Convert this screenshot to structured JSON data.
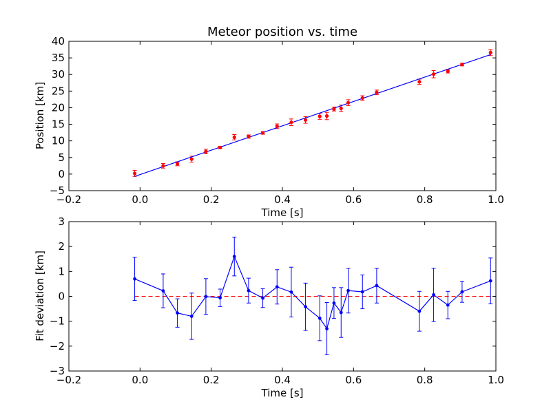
{
  "chart_data": [
    {
      "type": "scatter",
      "title": "Meteor position vs. time",
      "xlabel": "Time [s]",
      "ylabel": "Position [km]",
      "xlim": [
        -0.2,
        1.0
      ],
      "ylim": [
        -5,
        40
      ],
      "xticks": [
        -0.2,
        0.0,
        0.2,
        0.4,
        0.6,
        0.8,
        1.0
      ],
      "xtick_labels": [
        "−0.2",
        "0.0",
        "0.2",
        "0.4",
        "0.6",
        "0.8",
        "1.0"
      ],
      "yticks": [
        -5,
        0,
        5,
        10,
        15,
        20,
        25,
        30,
        35,
        40
      ],
      "ytick_labels": [
        "−5",
        "0",
        "5",
        "10",
        "15",
        "20",
        "25",
        "30",
        "35",
        "40"
      ],
      "grid": false,
      "colors": {
        "points": "#ff0000",
        "fit": "#0000ff",
        "axes": "#000000"
      },
      "series": [
        {
          "kind": "errorbar",
          "x": [
            -0.015,
            0.065,
            0.105,
            0.145,
            0.185,
            0.225,
            0.265,
            0.305,
            0.345,
            0.385,
            0.425,
            0.465,
            0.505,
            0.525,
            0.545,
            0.565,
            0.585,
            0.625,
            0.665,
            0.785,
            0.825,
            0.865,
            0.905,
            0.985
          ],
          "y": [
            0.2,
            2.5,
            3.1,
            4.5,
            6.8,
            8.0,
            11.1,
            11.3,
            12.4,
            14.4,
            15.6,
            16.3,
            17.4,
            17.5,
            19.6,
            19.8,
            21.5,
            22.9,
            24.6,
            27.8,
            30.1,
            31.0,
            33.0,
            36.6
          ],
          "yerr": [
            0.9,
            0.7,
            0.6,
            0.9,
            0.7,
            0.35,
            0.8,
            0.5,
            0.4,
            0.7,
            1.0,
            1.0,
            0.9,
            1.1,
            0.6,
            1.0,
            0.9,
            0.7,
            0.7,
            0.8,
            1.1,
            0.55,
            0.4,
            0.9
          ]
        },
        {
          "kind": "line",
          "x": [
            -0.015,
            0.985
          ],
          "y": [
            -0.7,
            36.0
          ]
        }
      ]
    },
    {
      "type": "line",
      "title": "",
      "xlabel": "Time [s]",
      "ylabel": "Fit deviation [km]",
      "xlim": [
        -0.2,
        1.0
      ],
      "ylim": [
        -3,
        3
      ],
      "xticks": [
        -0.2,
        0.0,
        0.2,
        0.4,
        0.6,
        0.8,
        1.0
      ],
      "xtick_labels": [
        "−0.2",
        "0.0",
        "0.2",
        "0.4",
        "0.6",
        "0.8",
        "1.0"
      ],
      "yticks": [
        -3,
        -2,
        -1,
        0,
        1,
        2,
        3
      ],
      "ytick_labels": [
        "−3",
        "−2",
        "−1",
        "0",
        "1",
        "2",
        "3"
      ],
      "grid": false,
      "colors": {
        "series": "#0000ff",
        "zero_line": "#ff0000",
        "axes": "#000000"
      },
      "series": [
        {
          "kind": "errorbar_line",
          "x": [
            -0.015,
            0.065,
            0.105,
            0.145,
            0.185,
            0.225,
            0.265,
            0.305,
            0.345,
            0.385,
            0.425,
            0.465,
            0.505,
            0.525,
            0.545,
            0.565,
            0.585,
            0.625,
            0.665,
            0.785,
            0.825,
            0.865,
            0.905,
            0.985
          ],
          "y": [
            0.7,
            0.22,
            -0.67,
            -0.8,
            -0.01,
            -0.06,
            1.6,
            0.23,
            -0.07,
            0.38,
            0.17,
            -0.42,
            -0.88,
            -1.3,
            -0.27,
            -0.65,
            0.23,
            0.18,
            0.43,
            -0.6,
            0.06,
            -0.35,
            0.18,
            0.62
          ],
          "yerr": [
            0.87,
            0.68,
            0.57,
            0.93,
            0.72,
            0.35,
            0.78,
            0.5,
            0.38,
            0.69,
            1.0,
            0.95,
            0.9,
            1.05,
            0.62,
            1.0,
            0.9,
            0.68,
            0.7,
            0.8,
            1.07,
            0.55,
            0.42,
            0.92
          ]
        },
        {
          "kind": "hline",
          "y": 0,
          "style": "dashed"
        }
      ]
    }
  ]
}
